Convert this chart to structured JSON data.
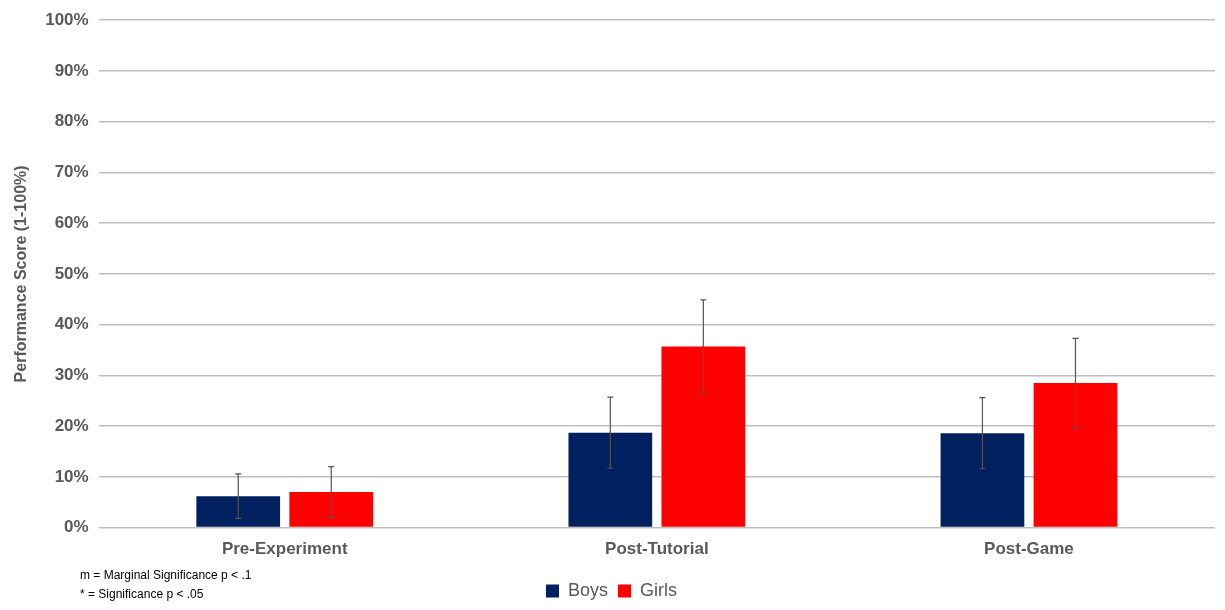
{
  "chart_data": {
    "type": "bar",
    "ylabel": "Performance Score (1-100%)",
    "categories": [
      "Pre-Experiment",
      "Post-Tutorial",
      "Post-Game"
    ],
    "series": [
      {
        "name": "Boys",
        "color": "#002060",
        "values": [
          6.2,
          18.7,
          18.6
        ],
        "errors": [
          4.4,
          7,
          7
        ]
      },
      {
        "name": "Girls",
        "color": "#ff0000",
        "values": [
          7,
          35.7,
          28.5
        ],
        "errors": [
          5,
          9.2,
          8.8
        ]
      }
    ],
    "ylim": [
      0,
      100
    ],
    "yticks": [
      {
        "value": 0,
        "label": "0%"
      },
      {
        "value": 10,
        "label": "10%"
      },
      {
        "value": 20,
        "label": "20%"
      },
      {
        "value": 30,
        "label": "30%"
      },
      {
        "value": 40,
        "label": "40%"
      },
      {
        "value": 50,
        "label": "50%"
      },
      {
        "value": 60,
        "label": "60%"
      },
      {
        "value": 70,
        "label": "70%"
      },
      {
        "value": 80,
        "label": "80%"
      },
      {
        "value": 90,
        "label": "90%"
      },
      {
        "value": 100,
        "label": "100%"
      }
    ],
    "grid": "y",
    "legend": "bottom",
    "annotations": [
      "m = Marginal Significance p < .1",
      "* = Significance p < .05"
    ]
  }
}
